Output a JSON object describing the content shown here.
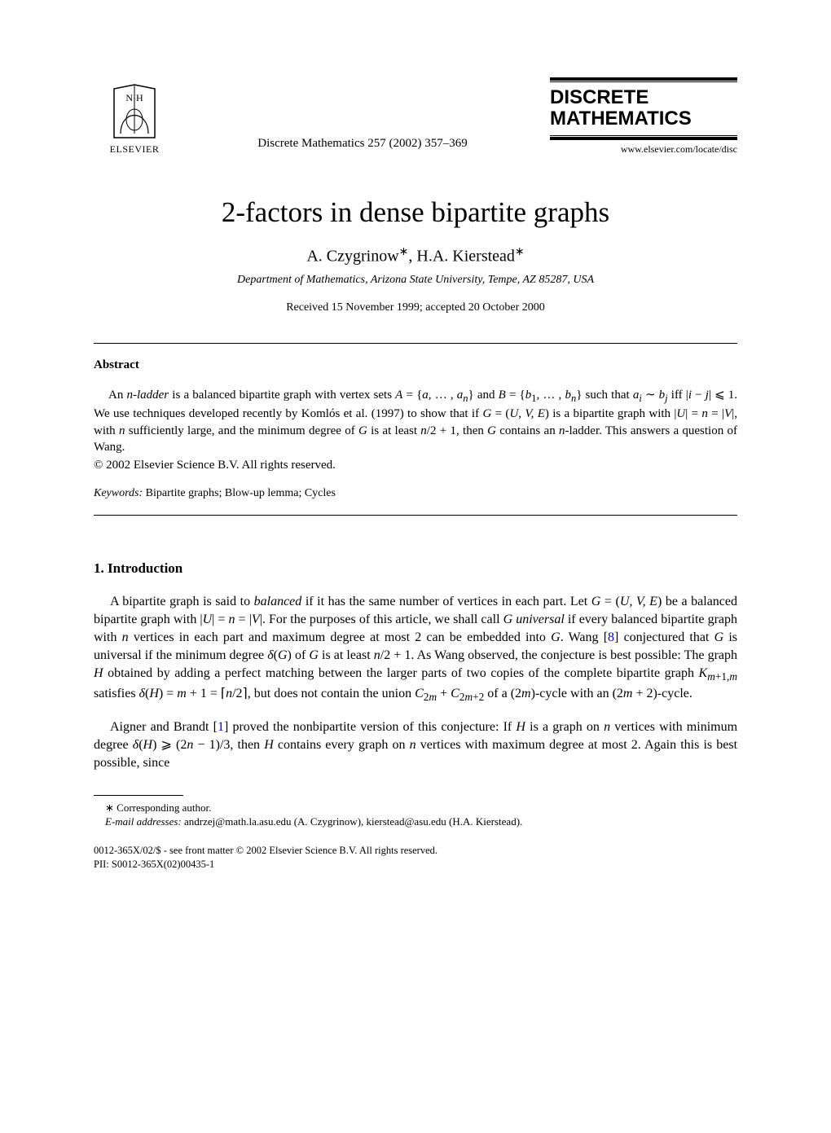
{
  "header": {
    "publisher_name": "ELSEVIER",
    "journal_cite": "Discrete Mathematics 257 (2002) 357–369",
    "journal_title_l1": "DISCRETE",
    "journal_title_l2": "MATHEMATICS",
    "journal_url": "www.elsevier.com/locate/disc"
  },
  "title": "2-factors in dense bipartite graphs",
  "authors_html": "A. Czygrinow<sup>∗</sup>, H.A. Kierstead<sup>∗</sup>",
  "affiliation": "Department of Mathematics, Arizona State University, Tempe, AZ 85287, USA",
  "dates": "Received 15 November 1999; accepted 20 October 2000",
  "abstract": {
    "heading": "Abstract",
    "body_html": "<span class=\"indent\">An <span class=\"math\">n-ladder</span> is a balanced bipartite graph with vertex sets <span class=\"math\">A</span> = {<span class=\"math\">a</span>, … , <span class=\"math\">a<sub>n</sub></span>} and <span class=\"math\">B</span> = {<span class=\"math\">b</span><sub>1</sub>, … , <span class=\"math\">b<sub>n</sub></span>} such that <span class=\"math\">a<sub>i</sub></span> ∼ <span class=\"math\">b<sub>j</sub></span> iff |<span class=\"math\">i</span> − <span class=\"math\">j</span>| ⩽ 1. We use techniques developed recently by Komlós et al. (1997) to show that if <span class=\"math\">G</span> = (<span class=\"math\">U, V, E</span>) is a bipartite graph with |<span class=\"math\">U</span>| = <span class=\"math\">n</span> = |<span class=\"math\">V</span>|, with <span class=\"math\">n</span> sufficiently large, and the minimum degree of <span class=\"math\">G</span> is at least <span class=\"math\">n</span>/2 + 1, then <span class=\"math\">G</span> contains an <span class=\"math\">n</span>-ladder. This answers a question of Wang.</span>",
    "copyright": "© 2002 Elsevier Science B.V. All rights reserved.",
    "keywords_label": "Keywords:",
    "keywords_text": " Bipartite graphs; Blow-up lemma; Cycles"
  },
  "intro": {
    "heading": "1.  Introduction",
    "p1_html": "A bipartite graph is said to <i>balanced</i> if it has the same number of vertices in each part. Let <span class=\"math\">G</span> = (<span class=\"math\">U, V, E</span>) be a balanced bipartite graph with |<span class=\"math\">U</span>| = <span class=\"math\">n</span> = |<span class=\"math\">V</span>|. For the purposes of this article, we shall call <span class=\"math\">G universal</span> if every balanced bipartite graph with <span class=\"math\">n</span> vertices in each part and maximum degree at most 2 can be embedded into <span class=\"math\">G</span>. Wang [<a class=\"ref\">8</a>] conjectured that <span class=\"math\">G</span> is universal if the minimum degree <span class=\"math\">δ</span>(<span class=\"math\">G</span>) of <span class=\"math\">G</span> is at least <span class=\"math\">n</span>/2 + 1. As Wang observed, the conjecture is best possible: The graph <span class=\"math\">H</span> obtained by adding a perfect matching between the larger parts of two copies of the complete bipartite graph <span class=\"math\">K</span><sub><span class=\"math\">m</span>+1,<span class=\"math\">m</span></sub> satisfies <span class=\"math\">δ</span>(<span class=\"math\">H</span>) = <span class=\"math\">m</span> + 1 = ⌈<span class=\"math\">n</span>/2⌉, but does not contain the union <span class=\"math\">C</span><sub>2<span class=\"math\">m</span></sub> + <span class=\"math\">C</span><sub>2<span class=\"math\">m</span>+2</sub> of a (2<span class=\"math\">m</span>)-cycle with an (2<span class=\"math\">m</span> + 2)-cycle.",
    "p2_html": "Aigner and Brandt [<a class=\"ref\">1</a>] proved the nonbipartite version of this conjecture: If <span class=\"math\">H</span> is a graph on <span class=\"math\">n</span> vertices with minimum degree <span class=\"math\">δ</span>(<span class=\"math\">H</span>) ⩾ (2<span class=\"math\">n</span> − 1)/3, then <span class=\"math\">H</span> contains every graph on <span class=\"math\">n</span> vertices with maximum degree at most 2. Again this is best possible, since"
  },
  "footnote": {
    "corr": "∗ Corresponding author.",
    "email_label": "E-mail addresses:",
    "email_text": " andrzej@math.la.asu.edu (A. Czygrinow), kierstead@asu.edu (H.A. Kierstead)."
  },
  "footer": {
    "line1": "0012-365X/02/$ - see front matter © 2002 Elsevier Science B.V. All rights reserved.",
    "line2": "PII: S0012-365X(02)00435-1"
  },
  "style": {
    "page_bg": "#ffffff",
    "text_color": "#000000",
    "link_color": "#0000cc"
  }
}
